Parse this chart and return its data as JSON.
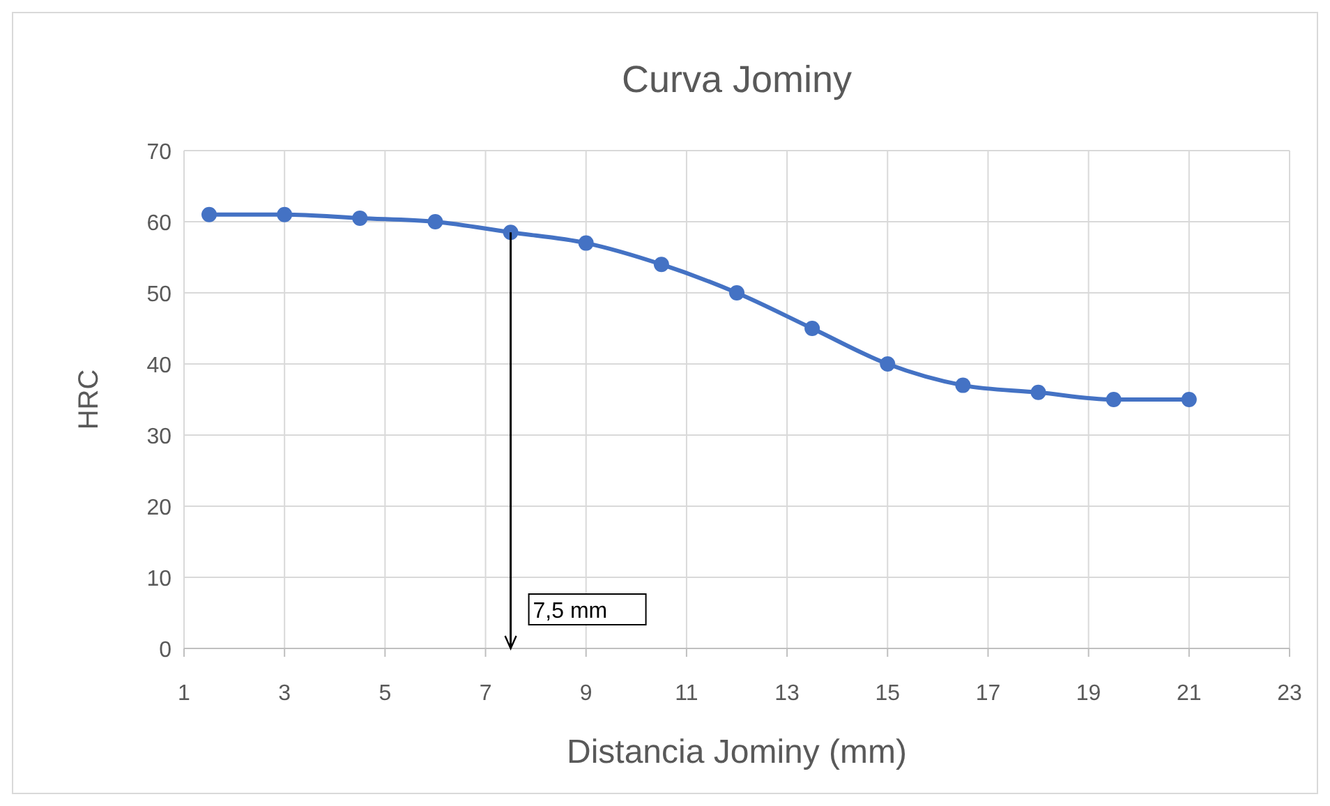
{
  "chart_data": {
    "type": "line",
    "title": "Curva Jominy",
    "xlabel": "Distancia Jominy (mm)",
    "ylabel": "HRC",
    "x": [
      1.5,
      3,
      4.5,
      6,
      7.5,
      9,
      10.5,
      12,
      13.5,
      15,
      16.5,
      18,
      19.5,
      21
    ],
    "series": [
      {
        "color": "#4472c4",
        "values": [
          61,
          61,
          60.5,
          60,
          58.5,
          57,
          54,
          50,
          45,
          40,
          37,
          36,
          35,
          35
        ]
      }
    ],
    "xlim": [
      1,
      23
    ],
    "xticks": [
      1,
      3,
      5,
      7,
      9,
      11,
      13,
      15,
      17,
      19,
      21,
      23
    ],
    "ylim": [
      0,
      70
    ],
    "yticks": [
      0,
      10,
      20,
      30,
      40,
      50,
      60,
      70
    ],
    "grid": true,
    "marker": "circle",
    "line_style": "solid",
    "ref_lines": [
      {
        "axis": "x",
        "value": 7.5,
        "label": "7,5 mm",
        "color": "#000000"
      }
    ]
  }
}
